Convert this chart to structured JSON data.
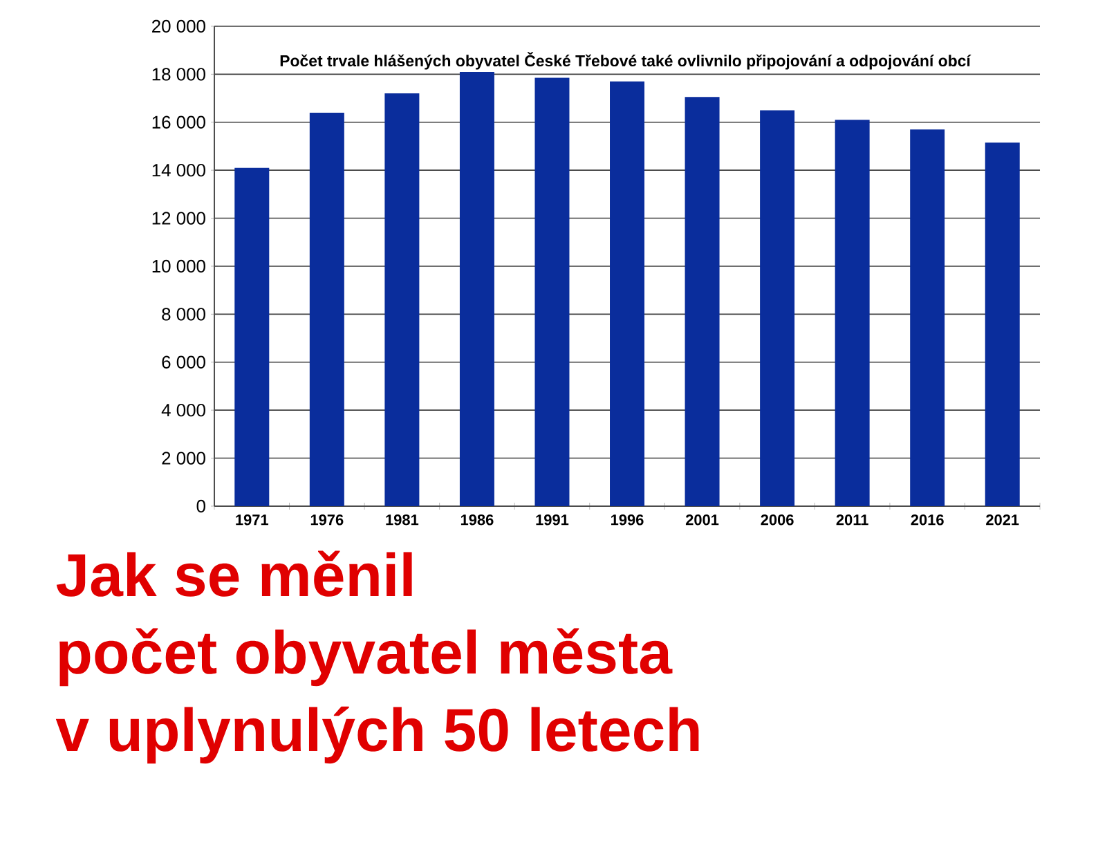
{
  "chart_data": {
    "type": "bar",
    "title": "Počet trvale hlášených obyvatel České Třebové také ovlivnilo připojování a odpojování obcí",
    "categories": [
      "1971",
      "1976",
      "1981",
      "1986",
      "1991",
      "1996",
      "2001",
      "2006",
      "2011",
      "2016",
      "2021"
    ],
    "values": [
      14100,
      16400,
      17200,
      18100,
      17850,
      17700,
      17050,
      16500,
      16100,
      15700,
      15150
    ],
    "color": "#0a2d9c",
    "ylim": [
      0,
      20000
    ],
    "yticks": [
      {
        "value": 0,
        "label": "0"
      },
      {
        "value": 2000,
        "label": "2 000"
      },
      {
        "value": 4000,
        "label": "4 000"
      },
      {
        "value": 6000,
        "label": "6 000"
      },
      {
        "value": 8000,
        "label": "8 000"
      },
      {
        "value": 10000,
        "label": "10 000"
      },
      {
        "value": 12000,
        "label": "12 000"
      },
      {
        "value": 14000,
        "label": "14 000"
      },
      {
        "value": 16000,
        "label": "16 000"
      },
      {
        "value": 18000,
        "label": "18 000"
      },
      {
        "value": 20000,
        "label": "20 000"
      }
    ],
    "grid": "y",
    "annotations": [
      "Jak se měnil",
      "počet obyvatel města",
      "v uplynulých 50 letech"
    ]
  }
}
